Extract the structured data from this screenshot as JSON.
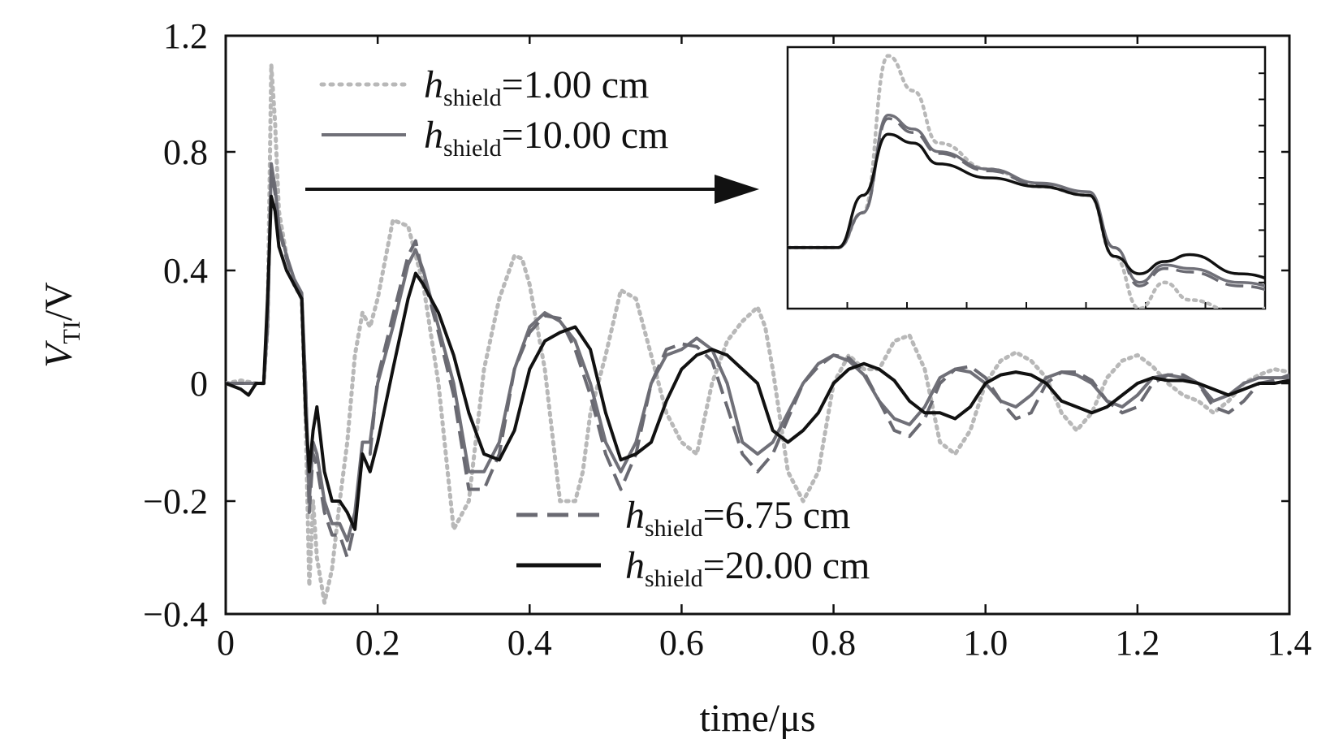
{
  "chart_data": {
    "type": "line",
    "xlabel": "time/μs",
    "ylabel": {
      "main": "V",
      "subscript": "TI",
      "suffix": "/V"
    },
    "xlim": [
      0,
      1.4
    ],
    "ylim": [
      -0.4,
      1.2
    ],
    "xticks": [
      0,
      0.2,
      0.4,
      0.6,
      0.8,
      1.0,
      1.2,
      1.4
    ],
    "xtick_labels": [
      "0",
      "0.2",
      "0.4",
      "0.6",
      "0.8",
      "1.0",
      "1.2",
      "1.4"
    ],
    "yticks": [
      -0.4,
      -0.2,
      0,
      0.4,
      0.8,
      1.2
    ],
    "ytick_labels": [
      "−0.4",
      "−0.2",
      "0",
      "0.4",
      "0.8",
      "1.2"
    ],
    "grid": false,
    "inset": true,
    "series": [
      {
        "name": "h_shield=1.00 cm",
        "label": {
          "var": "h",
          "sub": "shield",
          "rest": "=1.00 cm"
        },
        "color": "#b8b8b8",
        "style": "dotted",
        "x": [
          0,
          0.02,
          0.04,
          0.05,
          0.055,
          0.06,
          0.065,
          0.07,
          0.08,
          0.09,
          0.1,
          0.105,
          0.11,
          0.115,
          0.12,
          0.13,
          0.14,
          0.15,
          0.16,
          0.17,
          0.18,
          0.19,
          0.2,
          0.22,
          0.24,
          0.26,
          0.28,
          0.3,
          0.32,
          0.34,
          0.36,
          0.38,
          0.39,
          0.4,
          0.42,
          0.44,
          0.46,
          0.47,
          0.48,
          0.5,
          0.52,
          0.54,
          0.56,
          0.58,
          0.6,
          0.62,
          0.64,
          0.66,
          0.68,
          0.7,
          0.71,
          0.72,
          0.74,
          0.76,
          0.78,
          0.8,
          0.82,
          0.84,
          0.86,
          0.88,
          0.9,
          0.92,
          0.94,
          0.96,
          0.98,
          1.0,
          1.02,
          1.04,
          1.06,
          1.08,
          1.1,
          1.12,
          1.14,
          1.16,
          1.18,
          1.2,
          1.22,
          1.24,
          1.26,
          1.28,
          1.3,
          1.32,
          1.34,
          1.36,
          1.38,
          1.4
        ],
        "y": [
          0,
          0.01,
          0,
          0,
          0.2,
          1.1,
          0.9,
          0.6,
          0.45,
          0.35,
          0.3,
          -0.05,
          -0.35,
          -0.2,
          -0.3,
          -0.38,
          -0.32,
          -0.2,
          -0.1,
          0.1,
          0.25,
          0.2,
          0.3,
          0.57,
          0.55,
          0.35,
          0.0,
          -0.25,
          -0.2,
          0.05,
          0.3,
          0.45,
          0.44,
          0.35,
          0.05,
          -0.2,
          -0.2,
          -0.15,
          -0.05,
          0.1,
          0.33,
          0.3,
          0.1,
          -0.05,
          -0.1,
          -0.12,
          0.0,
          0.15,
          0.22,
          0.27,
          0.2,
          0.05,
          -0.15,
          -0.2,
          -0.15,
          0.0,
          0.1,
          0.05,
          0.05,
          0.15,
          0.17,
          0.05,
          -0.1,
          -0.12,
          -0.08,
          0.0,
          0.08,
          0.11,
          0.08,
          0.02,
          -0.05,
          -0.08,
          -0.05,
          0.02,
          0.08,
          0.1,
          0.06,
          0.0,
          -0.02,
          -0.03,
          -0.05,
          -0.03,
          0.0,
          0.03,
          0.05,
          0.04
        ]
      },
      {
        "name": "h_shield=10.00 cm",
        "label": {
          "var": "h",
          "sub": "shield",
          "rest": "=10.00 cm"
        },
        "color": "#707078",
        "style": "solid",
        "x": [
          0,
          0.02,
          0.04,
          0.05,
          0.055,
          0.06,
          0.065,
          0.07,
          0.08,
          0.09,
          0.1,
          0.105,
          0.11,
          0.115,
          0.12,
          0.13,
          0.14,
          0.15,
          0.16,
          0.17,
          0.18,
          0.19,
          0.2,
          0.22,
          0.24,
          0.25,
          0.26,
          0.28,
          0.3,
          0.32,
          0.34,
          0.36,
          0.38,
          0.4,
          0.42,
          0.44,
          0.46,
          0.48,
          0.5,
          0.52,
          0.54,
          0.56,
          0.58,
          0.6,
          0.62,
          0.64,
          0.66,
          0.68,
          0.7,
          0.72,
          0.74,
          0.76,
          0.78,
          0.8,
          0.82,
          0.84,
          0.86,
          0.88,
          0.9,
          0.92,
          0.94,
          0.96,
          0.98,
          1.0,
          1.02,
          1.04,
          1.06,
          1.08,
          1.1,
          1.12,
          1.14,
          1.16,
          1.18,
          1.2,
          1.22,
          1.24,
          1.26,
          1.28,
          1.3,
          1.32,
          1.34,
          1.36,
          1.38,
          1.4
        ],
        "y": [
          0,
          0.0,
          0.0,
          0.0,
          0.2,
          0.76,
          0.68,
          0.55,
          0.45,
          0.37,
          0.32,
          0.0,
          -0.2,
          -0.1,
          -0.12,
          -0.2,
          -0.24,
          -0.24,
          -0.27,
          -0.22,
          -0.1,
          -0.1,
          0.0,
          0.2,
          0.42,
          0.47,
          0.4,
          0.2,
          0.0,
          -0.15,
          -0.15,
          -0.1,
          0.05,
          0.2,
          0.25,
          0.22,
          0.15,
          0.0,
          -0.1,
          -0.15,
          -0.1,
          0.0,
          0.1,
          0.12,
          0.16,
          0.12,
          0.0,
          -0.1,
          -0.12,
          -0.1,
          -0.05,
          0.0,
          0.07,
          0.1,
          0.08,
          0.03,
          -0.03,
          -0.06,
          -0.07,
          -0.04,
          0.02,
          0.05,
          0.04,
          0.0,
          -0.03,
          -0.04,
          -0.02,
          0.02,
          0.04,
          0.03,
          0.0,
          -0.03,
          -0.04,
          -0.02,
          0.02,
          0.03,
          0.02,
          0.0,
          -0.03,
          -0.02,
          0.0,
          0.02,
          0.02,
          0.02
        ]
      },
      {
        "name": "h_shield=6.75 cm",
        "label": {
          "var": "h",
          "sub": "shield",
          "rest": "=6.75 cm"
        },
        "color": "#6a6a72",
        "style": "dashed",
        "x": [
          0,
          0.02,
          0.04,
          0.05,
          0.055,
          0.06,
          0.065,
          0.07,
          0.08,
          0.09,
          0.1,
          0.105,
          0.11,
          0.115,
          0.12,
          0.13,
          0.14,
          0.15,
          0.16,
          0.17,
          0.18,
          0.19,
          0.2,
          0.22,
          0.24,
          0.25,
          0.26,
          0.28,
          0.3,
          0.32,
          0.34,
          0.36,
          0.38,
          0.4,
          0.42,
          0.44,
          0.46,
          0.48,
          0.5,
          0.52,
          0.54,
          0.56,
          0.58,
          0.6,
          0.62,
          0.64,
          0.66,
          0.68,
          0.7,
          0.72,
          0.74,
          0.76,
          0.78,
          0.8,
          0.82,
          0.84,
          0.86,
          0.88,
          0.9,
          0.92,
          0.94,
          0.96,
          0.98,
          1.0,
          1.02,
          1.04,
          1.06,
          1.08,
          1.1,
          1.12,
          1.14,
          1.16,
          1.18,
          1.2,
          1.22,
          1.24,
          1.26,
          1.28,
          1.3,
          1.32,
          1.34,
          1.36,
          1.38,
          1.4
        ],
        "y": [
          0,
          0.0,
          0.0,
          0.0,
          0.2,
          0.74,
          0.66,
          0.54,
          0.44,
          0.36,
          0.3,
          0.0,
          -0.22,
          -0.12,
          -0.14,
          -0.22,
          -0.26,
          -0.26,
          -0.3,
          -0.24,
          -0.12,
          -0.12,
          0.02,
          0.24,
          0.45,
          0.5,
          0.38,
          0.18,
          -0.02,
          -0.18,
          -0.18,
          -0.12,
          0.05,
          0.18,
          0.24,
          0.23,
          0.12,
          -0.02,
          -0.12,
          -0.18,
          -0.12,
          0.0,
          0.12,
          0.14,
          0.13,
          0.08,
          -0.04,
          -0.12,
          -0.15,
          -0.12,
          -0.06,
          0.0,
          0.06,
          0.1,
          0.09,
          0.04,
          -0.03,
          -0.08,
          -0.09,
          -0.06,
          0.0,
          0.05,
          0.06,
          0.02,
          -0.03,
          -0.06,
          -0.05,
          0.0,
          0.04,
          0.04,
          0.01,
          -0.03,
          -0.05,
          -0.04,
          0.0,
          0.03,
          0.03,
          0.0,
          -0.04,
          -0.05,
          -0.03,
          0.0,
          0.01,
          0.03
        ]
      },
      {
        "name": "h_shield=20.00 cm",
        "label": {
          "var": "h",
          "sub": "shield",
          "rest": "=20.00 cm"
        },
        "color": "#111111",
        "style": "solid",
        "x": [
          0,
          0.02,
          0.03,
          0.04,
          0.05,
          0.055,
          0.06,
          0.065,
          0.07,
          0.08,
          0.09,
          0.1,
          0.105,
          0.11,
          0.115,
          0.12,
          0.13,
          0.14,
          0.15,
          0.16,
          0.17,
          0.18,
          0.19,
          0.2,
          0.22,
          0.24,
          0.25,
          0.26,
          0.28,
          0.3,
          0.32,
          0.34,
          0.36,
          0.38,
          0.4,
          0.42,
          0.44,
          0.46,
          0.48,
          0.5,
          0.52,
          0.54,
          0.56,
          0.58,
          0.6,
          0.62,
          0.64,
          0.66,
          0.68,
          0.7,
          0.72,
          0.74,
          0.76,
          0.78,
          0.8,
          0.82,
          0.84,
          0.86,
          0.88,
          0.9,
          0.92,
          0.94,
          0.96,
          0.98,
          1.0,
          1.02,
          1.04,
          1.06,
          1.08,
          1.1,
          1.12,
          1.14,
          1.16,
          1.18,
          1.2,
          1.22,
          1.24,
          1.26,
          1.28,
          1.3,
          1.32,
          1.34,
          1.36,
          1.38,
          1.4
        ],
        "y": [
          0,
          -0.01,
          -0.02,
          0.0,
          0.0,
          0.3,
          0.65,
          0.6,
          0.48,
          0.4,
          0.35,
          0.3,
          -0.05,
          -0.15,
          -0.08,
          -0.04,
          -0.15,
          -0.2,
          -0.2,
          -0.22,
          -0.25,
          -0.12,
          -0.15,
          -0.1,
          0.05,
          0.3,
          0.39,
          0.35,
          0.25,
          0.1,
          -0.05,
          -0.12,
          -0.13,
          -0.08,
          0.05,
          0.15,
          0.18,
          0.2,
          0.12,
          -0.05,
          -0.13,
          -0.12,
          -0.1,
          -0.03,
          0.05,
          0.1,
          0.12,
          0.1,
          0.05,
          0.0,
          -0.08,
          -0.1,
          -0.08,
          -0.05,
          0.0,
          0.05,
          0.07,
          0.05,
          0.01,
          -0.03,
          -0.05,
          -0.05,
          -0.06,
          -0.04,
          0.0,
          0.03,
          0.04,
          0.03,
          0.0,
          -0.03,
          -0.04,
          -0.05,
          -0.04,
          -0.02,
          0.0,
          0.02,
          0.01,
          0.01,
          0.0,
          -0.01,
          -0.02,
          -0.01,
          0.0,
          0.0,
          0.01
        ]
      }
    ]
  }
}
